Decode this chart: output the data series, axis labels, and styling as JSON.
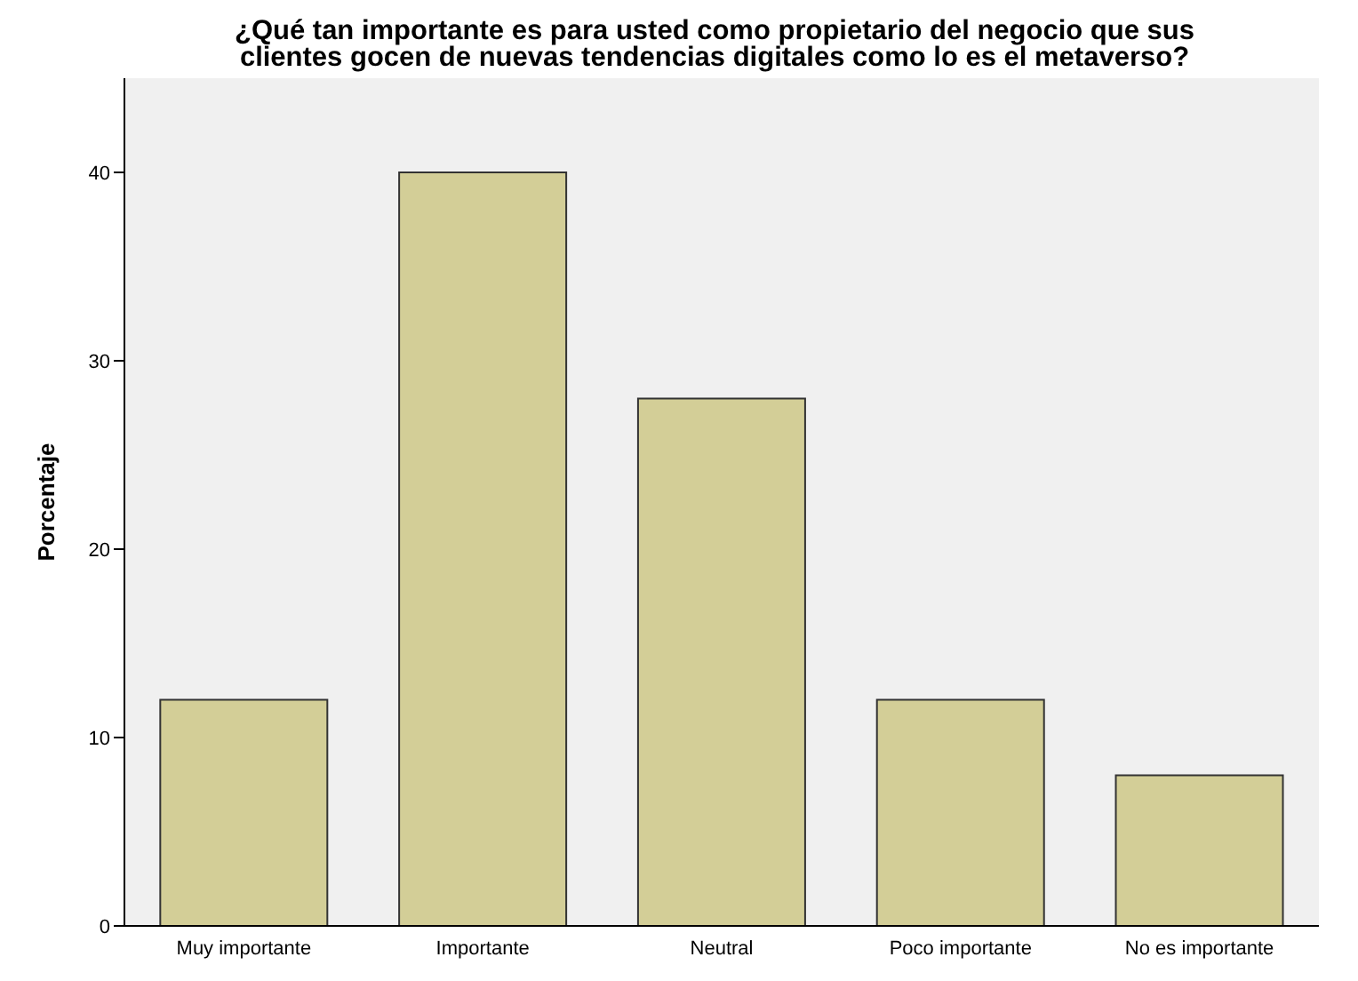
{
  "chart_data": {
    "type": "bar",
    "title": "¿Qué tan importante es para usted como propietario del negocio que sus\nclientes gocen de nuevas tendencias digitales como lo es el metaverso?",
    "ylabel": "Porcentaje",
    "categories": [
      "Muy importante",
      "Importante",
      "Neutral",
      "Poco importante",
      "No es importante"
    ],
    "values": [
      12,
      40,
      28,
      12,
      8
    ],
    "color": "#d3ce97",
    "ylim": [
      0,
      45
    ],
    "yticks": [
      0,
      10,
      20,
      30,
      40
    ],
    "grid": false
  }
}
